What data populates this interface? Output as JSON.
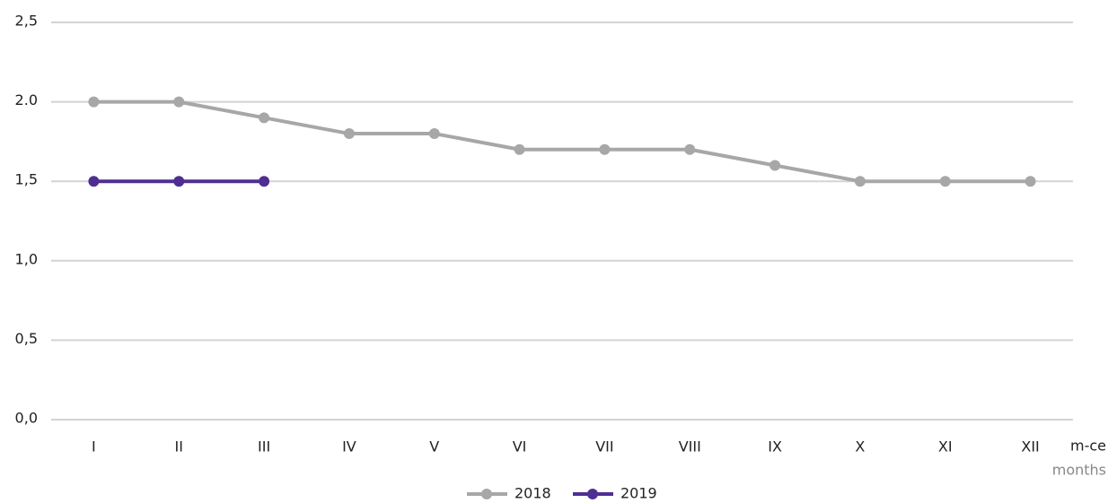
{
  "chart_data": {
    "type": "line",
    "categories": [
      "I",
      "II",
      "III",
      "IV",
      "V",
      "VI",
      "VII",
      "VIII",
      "IX",
      "X",
      "XI",
      "XII"
    ],
    "series": [
      {
        "name": "2018",
        "color": "#a7a7a9",
        "values": [
          2.0,
          2.0,
          1.9,
          1.8,
          1.8,
          1.7,
          1.7,
          1.7,
          1.6,
          1.5,
          1.5,
          1.5
        ]
      },
      {
        "name": "2019",
        "color": "#4f2e91",
        "values": [
          1.5,
          1.5,
          1.5,
          null,
          null,
          null,
          null,
          null,
          null,
          null,
          null,
          null
        ]
      }
    ],
    "xlabel": "m-ce",
    "xlabel_sub": "months",
    "ylim": [
      0,
      2.5
    ],
    "yticks": [
      {
        "value": 0,
        "label": "0,0"
      },
      {
        "value": 0.5,
        "label": "0,5"
      },
      {
        "value": 1,
        "label": "1,0"
      },
      {
        "value": 1.5,
        "label": "1,5"
      },
      {
        "value": 2,
        "label": "2.0"
      },
      {
        "value": 2.5,
        "label": "2,5"
      }
    ],
    "grid": true,
    "legend": "bottom"
  }
}
